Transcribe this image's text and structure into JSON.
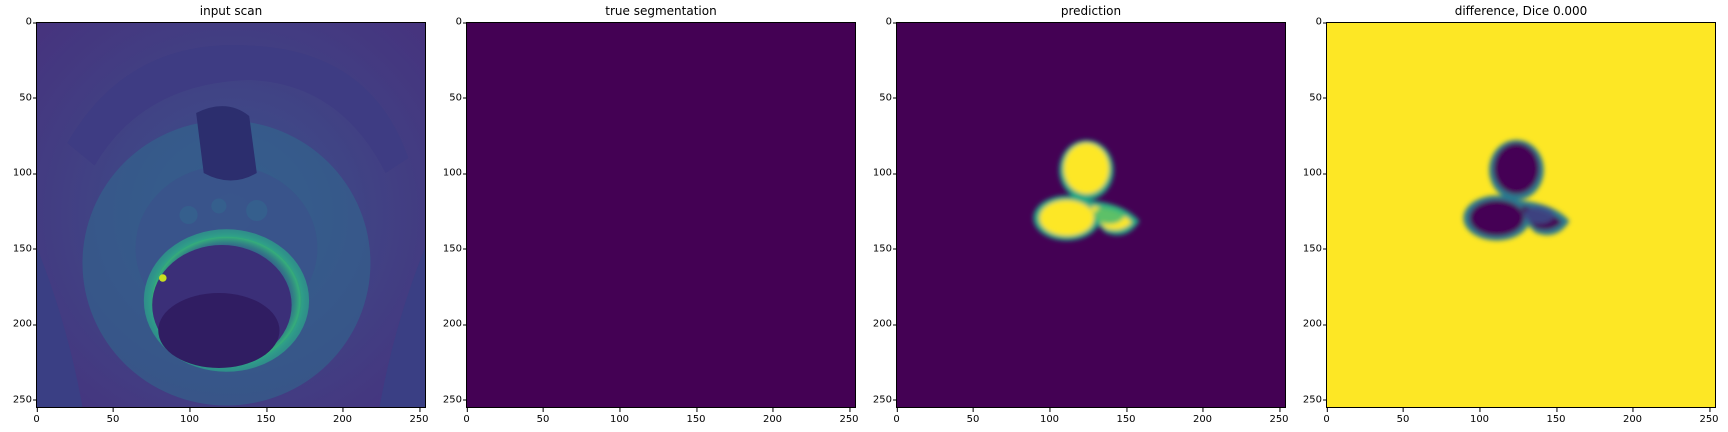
{
  "colors": {
    "low": "#440154",
    "high": "#fde725",
    "mid_green": "#22a884",
    "teal": "#2a788e",
    "blue": "#3b528b"
  },
  "panels": [
    {
      "title": "input scan"
    },
    {
      "title": "true segmentation"
    },
    {
      "title": "prediction"
    },
    {
      "title": "difference, Dice 0.000"
    }
  ],
  "axis": {
    "y_ticks": [
      "0",
      "50",
      "100",
      "150",
      "200",
      "250"
    ],
    "x_ticks": [
      "0",
      "50",
      "100",
      "150",
      "200",
      "250"
    ]
  }
}
